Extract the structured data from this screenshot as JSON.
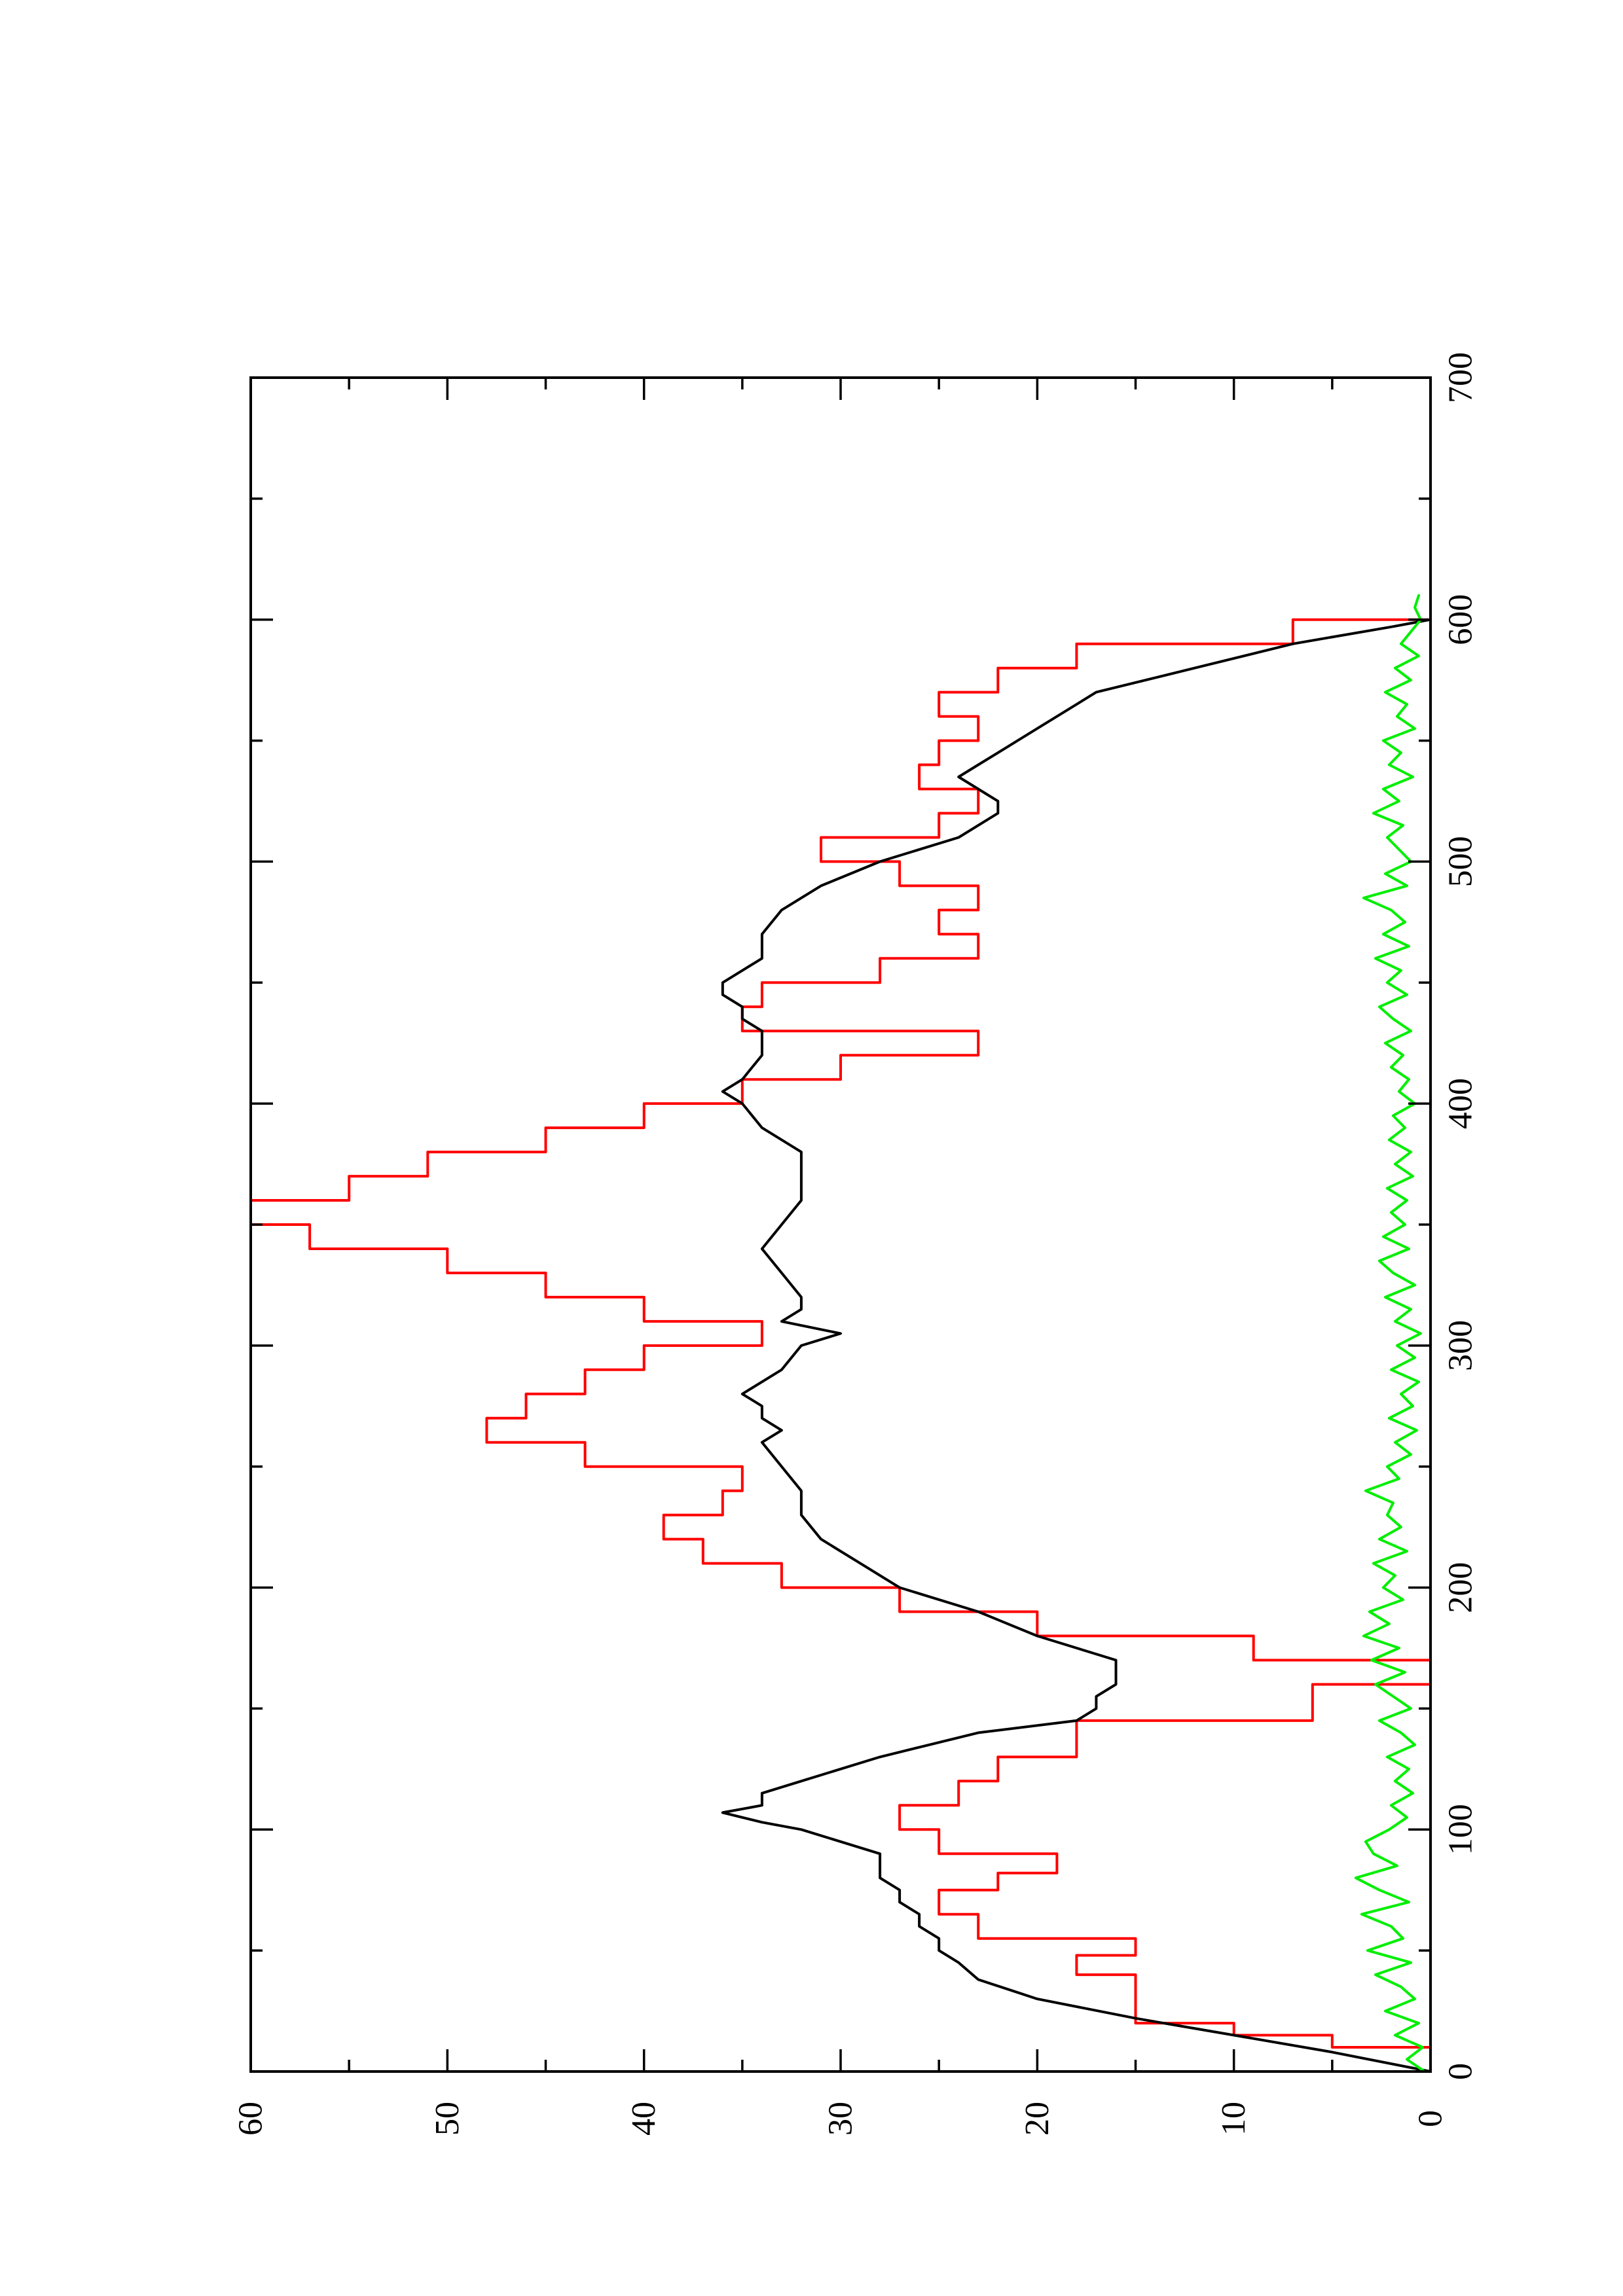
{
  "chart_data": {
    "type": "line",
    "title": "",
    "xlabel": "",
    "ylabel": "",
    "xlim": [
      0,
      700
    ],
    "ylim": [
      0,
      60
    ],
    "orientation": "rotated-90-ccw",
    "grid": false,
    "legend": "none",
    "x_ticks": [
      "0",
      "100",
      "200",
      "300",
      "400",
      "500",
      "600",
      "700"
    ],
    "y_ticks": [
      "0",
      "10",
      "20",
      "30",
      "40",
      "50",
      "60"
    ],
    "series": [
      {
        "color": "#ff0000",
        "step": true,
        "x": [
          0,
          10,
          15,
          20,
          30,
          40,
          48,
          55,
          65,
          75,
          82,
          90,
          100,
          110,
          120,
          130,
          145,
          160,
          170,
          180,
          190,
          200,
          210,
          220,
          230,
          240,
          250,
          260,
          270,
          280,
          290,
          300,
          310,
          320,
          330,
          340,
          350,
          360,
          370,
          380,
          390,
          400,
          410,
          420,
          430,
          440,
          450,
          460,
          470,
          480,
          490,
          500,
          510,
          520,
          530,
          540,
          550,
          560,
          570,
          580,
          590,
          600
        ],
        "y": [
          0,
          5,
          10,
          15,
          15,
          18,
          15,
          23,
          25,
          22,
          19,
          25,
          27,
          24,
          22,
          18,
          6,
          0,
          9,
          20,
          27,
          33,
          37,
          39,
          36,
          35,
          43,
          48,
          46,
          43,
          40,
          34,
          40,
          45,
          50,
          57,
          60,
          55,
          51,
          45,
          40,
          35,
          30,
          23,
          35,
          34,
          28,
          23,
          25,
          23,
          27,
          31,
          25,
          23,
          26,
          25,
          23,
          25,
          22,
          18,
          7,
          0
        ]
      },
      {
        "color": "#000000",
        "step": false,
        "x": [
          0,
          8,
          15,
          22,
          30,
          38,
          45,
          50,
          55,
          60,
          65,
          70,
          75,
          80,
          85,
          90,
          95,
          100,
          103,
          107,
          110,
          115,
          120,
          130,
          140,
          145,
          150,
          155,
          160,
          170,
          180,
          190,
          200,
          210,
          220,
          230,
          240,
          250,
          260,
          265,
          270,
          275,
          280,
          290,
          300,
          305,
          310,
          315,
          320,
          330,
          340,
          350,
          360,
          370,
          380,
          390,
          400,
          405,
          410,
          420,
          430,
          435,
          440,
          445,
          450,
          455,
          460,
          465,
          470,
          480,
          490,
          500,
          510,
          520,
          525,
          530,
          535,
          540,
          545,
          550,
          555,
          560,
          570,
          580,
          590,
          597,
          600
        ],
        "y": [
          0,
          5,
          10,
          15,
          20,
          23,
          24,
          25,
          25,
          26,
          26,
          27,
          27,
          28,
          28,
          28,
          30,
          32,
          34,
          36,
          34,
          34,
          32,
          28,
          23,
          18,
          17,
          17,
          16,
          16,
          20,
          23,
          27,
          29,
          31,
          32,
          32,
          33,
          34,
          33,
          34,
          34,
          35,
          33,
          32,
          30,
          33,
          32,
          32,
          33,
          34,
          33,
          32,
          32,
          32,
          34,
          35,
          36,
          35,
          34,
          34,
          35,
          35,
          36,
          36,
          35,
          34,
          34,
          34,
          33,
          31,
          28,
          24,
          22,
          22,
          23,
          24,
          23,
          22,
          21,
          20,
          19,
          17,
          12,
          7,
          2,
          0
        ]
      },
      {
        "color": "#00ee00",
        "step": false,
        "x": [
          0,
          5,
          10,
          15,
          20,
          25,
          30,
          35,
          40,
          45,
          50,
          55,
          60,
          65,
          70,
          75,
          80,
          85,
          90,
          95,
          100,
          105,
          110,
          115,
          120,
          125,
          130,
          135,
          140,
          145,
          150,
          155,
          160,
          165,
          170,
          175,
          180,
          185,
          190,
          195,
          200,
          205,
          210,
          215,
          220,
          225,
          230,
          235,
          240,
          245,
          250,
          255,
          260,
          265,
          270,
          275,
          280,
          285,
          290,
          295,
          300,
          305,
          310,
          315,
          320,
          325,
          330,
          335,
          340,
          345,
          350,
          355,
          360,
          365,
          370,
          375,
          380,
          385,
          390,
          395,
          400,
          405,
          410,
          415,
          420,
          425,
          430,
          435,
          440,
          445,
          450,
          455,
          460,
          465,
          470,
          475,
          480,
          485,
          490,
          495,
          500,
          505,
          510,
          515,
          520,
          525,
          530,
          535,
          540,
          545,
          550,
          555,
          560,
          565,
          570,
          575,
          580,
          585,
          590,
          595,
          600,
          605,
          610
        ],
        "y": [
          0.3,
          1.2,
          0.4,
          1.8,
          0.6,
          2.3,
          0.8,
          1.5,
          2.8,
          1.0,
          3.2,
          1.4,
          2.0,
          3.5,
          1.1,
          2.6,
          3.8,
          1.7,
          2.9,
          3.3,
          2.1,
          1.2,
          2.0,
          0.9,
          1.8,
          1.1,
          2.2,
          0.8,
          1.5,
          2.6,
          1.0,
          1.9,
          2.8,
          1.3,
          3.0,
          1.6,
          3.4,
          2.1,
          3.1,
          1.4,
          2.4,
          1.8,
          2.9,
          1.2,
          2.6,
          1.5,
          2.2,
          1.9,
          3.3,
          1.6,
          2.2,
          1.0,
          1.8,
          0.7,
          2.1,
          0.9,
          1.5,
          0.6,
          2.0,
          0.8,
          1.7,
          0.5,
          1.8,
          1.0,
          2.3,
          0.8,
          1.9,
          2.6,
          1.1,
          2.4,
          1.3,
          2.0,
          1.2,
          2.2,
          0.9,
          1.8,
          1.0,
          2.1,
          1.3,
          1.9,
          0.8,
          1.6,
          1.1,
          2.0,
          1.4,
          2.3,
          1.0,
          1.9,
          2.6,
          1.2,
          2.2,
          1.5,
          2.8,
          1.1,
          2.4,
          1.3,
          2.0,
          3.4,
          1.2,
          2.3,
          1.0,
          1.6,
          2.2,
          1.4,
          2.9,
          1.6,
          2.4,
          0.9,
          2.1,
          1.5,
          2.4,
          0.8,
          1.7,
          1.2,
          2.3,
          1.0,
          1.8,
          0.6,
          1.5,
          1.0,
          0.5,
          0.8,
          0.6
        ]
      }
    ]
  }
}
